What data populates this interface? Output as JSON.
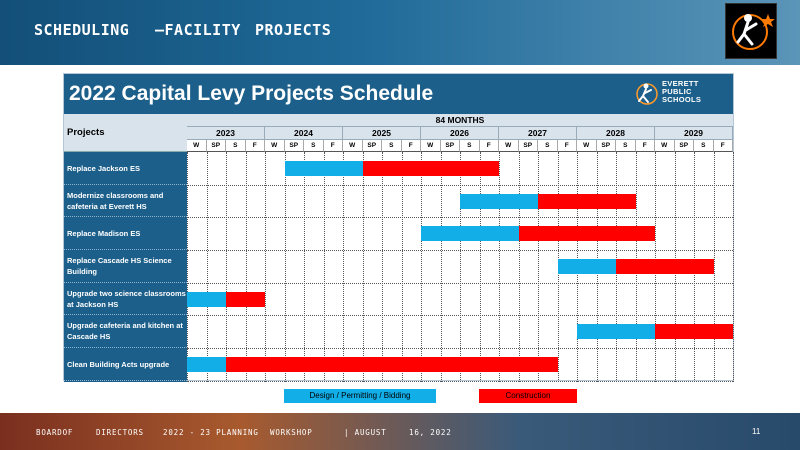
{
  "header": {
    "nav": [
      "SCHEDULING",
      "–FACILITY",
      "PROJECTS"
    ]
  },
  "schedule": {
    "title": "2022 Capital Levy Projects Schedule",
    "logo_text": [
      "EVERETT",
      "PUBLIC",
      "SCHOOLS"
    ],
    "projects_header": "Projects",
    "months_header": "84 MONTHS",
    "years": [
      "2023",
      "2024",
      "2025",
      "2026",
      "2027",
      "2028",
      "2029"
    ],
    "seasons": [
      "W",
      "SP",
      "S",
      "F"
    ],
    "projects": [
      {
        "name": "Replace Jackson ES",
        "design": [
          5,
          9
        ],
        "construction": [
          9,
          16
        ]
      },
      {
        "name": "Modernize classrooms and cafeteria at Everett HS",
        "design": [
          14,
          18
        ],
        "construction": [
          18,
          23
        ]
      },
      {
        "name": "Replace Madison ES",
        "design": [
          12,
          17
        ],
        "construction": [
          17,
          24
        ]
      },
      {
        "name": "Replace Cascade HS Science Building",
        "design": [
          19,
          22
        ],
        "construction": [
          22,
          27
        ]
      },
      {
        "name": "Upgrade two science classrooms at Jackson HS",
        "design": [
          0,
          2
        ],
        "construction": [
          2,
          4
        ]
      },
      {
        "name": "Upgrade cafeteria and kitchen at Cascade HS",
        "design": [
          20,
          24
        ],
        "construction": [
          24,
          28
        ]
      },
      {
        "name": "Clean Building Acts upgrade",
        "design": [
          0,
          2
        ],
        "construction": [
          2,
          19
        ]
      }
    ],
    "colors": {
      "design": "#12aee8",
      "construction": "#ff0000",
      "header_blue": "#1c5f8a"
    }
  },
  "legend": {
    "design_label": "Design / Permitting / Bidding",
    "construction_label": "Construction"
  },
  "footer": {
    "segments": [
      "BOARDOF",
      "DIRECTORS",
      "2022 - 23 PLANNING",
      "WORKSHOP",
      "| AUGUST",
      "16, 2022"
    ],
    "page_number": "11"
  }
}
